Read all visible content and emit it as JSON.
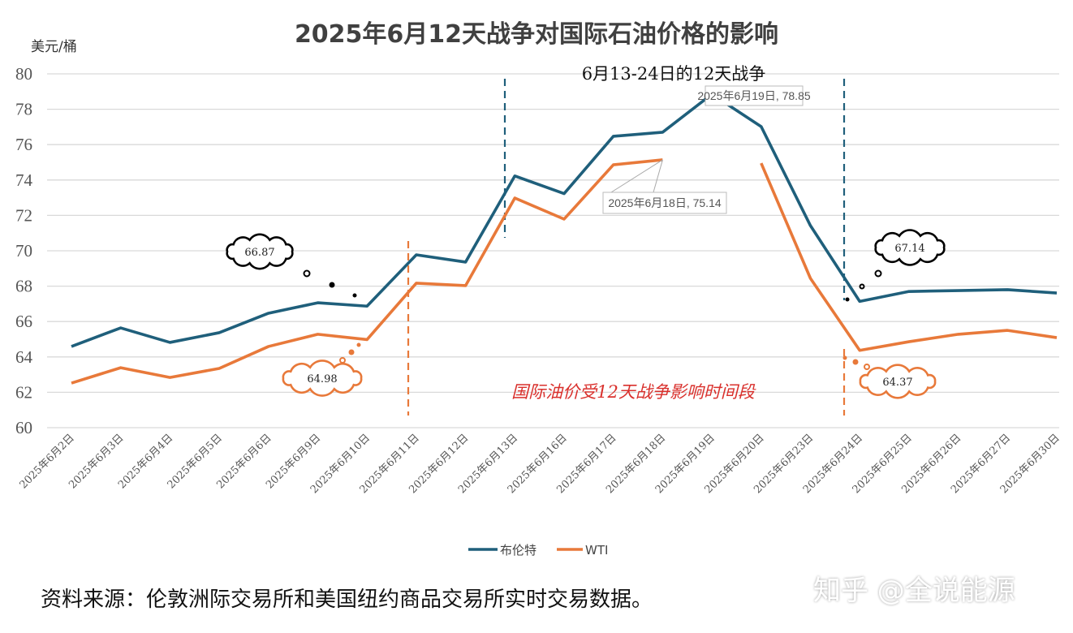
{
  "chart_data": {
    "type": "line",
    "title": "2025年6月12天战争对国际石油价格的影响",
    "ylabel": "美元/桶",
    "xlabel": "",
    "ylim": [
      60,
      80
    ],
    "yticks": [
      60,
      62,
      64,
      66,
      68,
      70,
      72,
      74,
      76,
      78,
      80
    ],
    "grid": "horizontal",
    "legend_position": "bottom",
    "categories": [
      "2025年6月2日",
      "2025年6月3日",
      "2025年6月4日",
      "2025年6月5日",
      "2025年6月6日",
      "2025年6月9日",
      "2025年6月10日",
      "2025年6月11日",
      "2025年6月12日",
      "2025年6月13日",
      "2025年6月16日",
      "2025年6月17日",
      "2025年6月18日",
      "2025年6月19日",
      "2025年6月20日",
      "2025年6月23日",
      "2025年6月24日",
      "2025年6月25日",
      "2025年6月26日",
      "2025年6月27日",
      "2025年6月30日"
    ],
    "series": [
      {
        "name": "布伦特",
        "color": "#1f5f7b",
        "values": [
          64.59,
          65.64,
          64.82,
          65.37,
          66.47,
          67.06,
          66.87,
          69.77,
          69.36,
          74.23,
          73.23,
          76.47,
          76.7,
          78.85,
          77.02,
          71.42,
          67.14,
          67.7,
          67.75,
          67.8,
          67.61
        ]
      },
      {
        "name": "WTI",
        "color": "#e8793a",
        "values": [
          62.52,
          63.39,
          62.84,
          63.35,
          64.59,
          65.28,
          64.98,
          68.17,
          68.03,
          72.98,
          71.79,
          74.86,
          75.14,
          null,
          74.95,
          68.44,
          64.37,
          64.86,
          65.28,
          65.5,
          65.09
        ]
      }
    ],
    "annotations": {
      "war_period_title": "6月13-24日的12天战争",
      "war_period_note": "国际油价受12天战争影响时间段",
      "callout_brent_peak": "2025年6月19日, 78.85",
      "callout_wti_peak": "2025年6月18日, 75.14",
      "cloud_brent_before": "66.87",
      "cloud_wti_before": "64.98",
      "cloud_brent_after": "67.14",
      "cloud_wti_after": "64.37"
    }
  },
  "footer": {
    "source": "资料来源：伦敦洲际交易所和美国纽约商品交易所实时交易数据。",
    "watermark": "知乎 @全说能源"
  }
}
